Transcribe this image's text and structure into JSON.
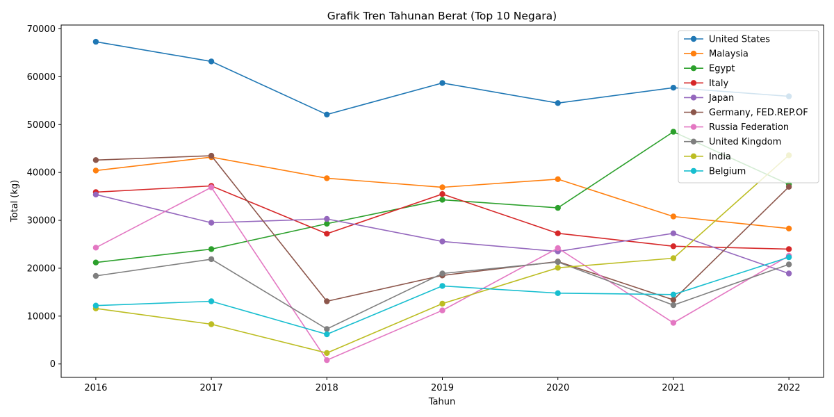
{
  "chart_data": {
    "type": "line",
    "title": "Grafik Tren Tahunan Berat (Top 10 Negara)",
    "xlabel": "Tahun",
    "ylabel": "Total (kg)",
    "x": [
      2016,
      2017,
      2018,
      2019,
      2020,
      2021,
      2022
    ],
    "xlim": [
      2015.7,
      2022.3
    ],
    "ylim": [
      -2800,
      70800
    ],
    "yticks": [
      0,
      10000,
      20000,
      30000,
      40000,
      50000,
      60000,
      70000
    ],
    "grid": false,
    "legend_position": "top-right",
    "series": [
      {
        "name": "United States",
        "color": "#1f77b4",
        "values": [
          67300,
          63200,
          52100,
          58700,
          54500,
          57700,
          55900
        ]
      },
      {
        "name": "Malaysia",
        "color": "#ff7f0e",
        "values": [
          40400,
          43200,
          38800,
          36900,
          38600,
          30800,
          28300
        ]
      },
      {
        "name": "Egypt",
        "color": "#2ca02c",
        "values": [
          21200,
          24000,
          29300,
          34300,
          32600,
          48500,
          37500
        ]
      },
      {
        "name": "Italy",
        "color": "#d62728",
        "values": [
          35900,
          37200,
          27200,
          35500,
          27300,
          24600,
          24000
        ]
      },
      {
        "name": "Japan",
        "color": "#9467bd",
        "values": [
          35400,
          29500,
          30300,
          25600,
          23500,
          27300,
          18900
        ]
      },
      {
        "name": "Germany, FED.REP.OF",
        "color": "#8c564b",
        "values": [
          42600,
          43500,
          13100,
          18500,
          21400,
          13400,
          37000
        ]
      },
      {
        "name": "Russia Federation",
        "color": "#e377c2",
        "values": [
          24300,
          36900,
          800,
          11200,
          24200,
          8600,
          22600
        ]
      },
      {
        "name": "United Kingdom",
        "color": "#7f7f7f",
        "values": [
          18400,
          21900,
          7300,
          18900,
          21300,
          12300,
          20800
        ]
      },
      {
        "name": "India",
        "color": "#bcbd22",
        "values": [
          11600,
          8300,
          2300,
          12600,
          20100,
          22100,
          43600
        ]
      },
      {
        "name": "Belgium",
        "color": "#17becf",
        "values": [
          12200,
          13100,
          6200,
          16300,
          14800,
          14500,
          22300
        ]
      }
    ]
  }
}
